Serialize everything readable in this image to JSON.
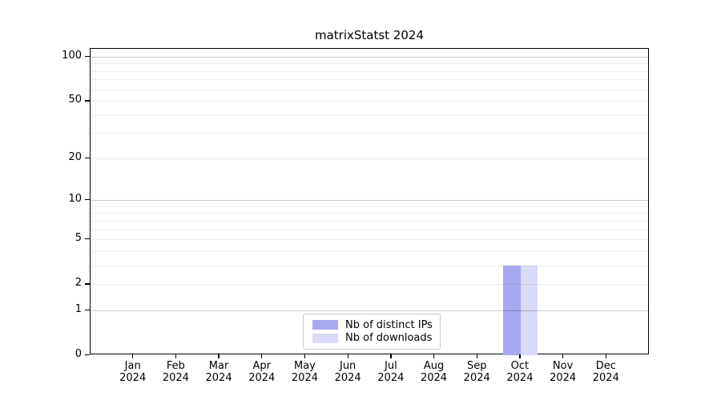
{
  "chart_data": {
    "type": "bar",
    "title": "matrixStatst 2024",
    "categories": [
      "Jan",
      "Feb",
      "Mar",
      "Apr",
      "May",
      "Jun",
      "Jul",
      "Aug",
      "Sep",
      "Oct",
      "Nov",
      "Dec"
    ],
    "category_year": "2024",
    "series": [
      {
        "name": "Nb of distinct IPs",
        "color": "#a8a8f0",
        "values": [
          0,
          0,
          0,
          0,
          0,
          0,
          0,
          0,
          0,
          3,
          0,
          0
        ]
      },
      {
        "name": "Nb of downloads",
        "color": "#d9d9f8",
        "values": [
          0,
          0,
          0,
          0,
          0,
          0,
          0,
          0,
          0,
          3,
          0,
          0
        ]
      }
    ],
    "yscale": "log1p",
    "ylim": [
      0,
      113
    ],
    "y_tick_values": [
      0,
      1,
      2,
      5,
      10,
      20,
      50,
      100
    ],
    "y_tick_labels": [
      "0",
      "1",
      "2",
      "5",
      "10",
      "20",
      "50",
      "100"
    ],
    "major_grid_values": [
      1,
      10,
      100
    ],
    "minor_grid_values": [
      2,
      3,
      4,
      5,
      6,
      7,
      8,
      9,
      20,
      30,
      40,
      50,
      60,
      70,
      80,
      90
    ],
    "grid": true,
    "legend_position": "lower center",
    "colors": {
      "background": "#ffffff",
      "spine": "#000000",
      "text": "#000000",
      "major_grid": "rgba(0,0,0,0.22)",
      "minor_grid": "rgba(0,0,0,0.08)"
    }
  }
}
